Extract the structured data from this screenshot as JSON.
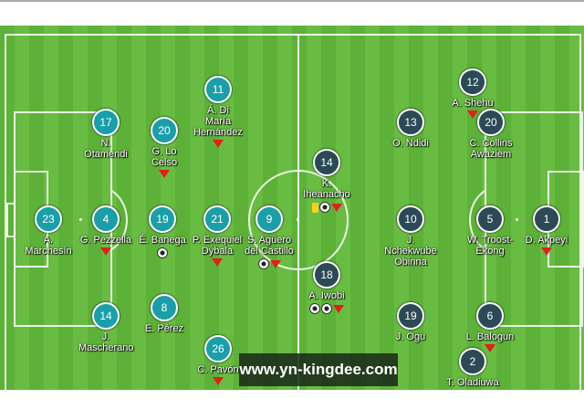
{
  "colors": {
    "home": "#1a9fa8",
    "away": "#2c4a56",
    "pitch": "#64b83e"
  },
  "home": [
    {
      "num": "11",
      "name": "Á. Di\nMaría Hernández",
      "icons": [
        "sub-off"
      ]
    },
    {
      "num": "17",
      "name": "N. Otamendi",
      "icons": []
    },
    {
      "num": "20",
      "name": "G. Lo\nCelso",
      "icons": [
        "sub-off"
      ]
    },
    {
      "num": "23",
      "name": "A. Marchesín",
      "icons": []
    },
    {
      "num": "4",
      "name": "G. Pezzella",
      "icons": [
        "sub-off"
      ]
    },
    {
      "num": "19",
      "name": "É. Banega",
      "icons": [
        "goal"
      ]
    },
    {
      "num": "21",
      "name": "P. Exequiel\nDybala",
      "icons": [
        "sub-off"
      ]
    },
    {
      "num": "9",
      "name": "S. Agüero\ndel Castillo",
      "icons": [
        "goal",
        "sub-off"
      ]
    },
    {
      "num": "14",
      "name": "J. Mascherano",
      "icons": []
    },
    {
      "num": "8",
      "name": "E. Pérez",
      "icons": []
    },
    {
      "num": "26",
      "name": "C. Pavón",
      "icons": [
        "sub-off"
      ]
    }
  ],
  "away": [
    {
      "num": "12",
      "name": "A. Shehu",
      "icons": [
        "sub-off"
      ]
    },
    {
      "num": "13",
      "name": "O. Ndidi",
      "icons": []
    },
    {
      "num": "20",
      "name": "C. Collins\nAwaziem",
      "icons": []
    },
    {
      "num": "14",
      "name": "K. Iheanacho",
      "icons": [
        "yellow-card",
        "goal",
        "sub-off"
      ]
    },
    {
      "num": "10",
      "name": "J. Nchekwube\nObinna",
      "icons": []
    },
    {
      "num": "5",
      "name": "W. Troost-Ekong",
      "icons": []
    },
    {
      "num": "1",
      "name": "D. Akpeyi",
      "icons": [
        "sub-off"
      ]
    },
    {
      "num": "18",
      "name": "A. Iwobi",
      "icons": [
        "goal",
        "goal",
        "sub-off"
      ]
    },
    {
      "num": "19",
      "name": "J. Ogu",
      "icons": []
    },
    {
      "num": "6",
      "name": "L. Balogun",
      "icons": [
        "sub-off"
      ]
    },
    {
      "num": "2",
      "name": "T. Oladiuwa",
      "icons": []
    }
  ],
  "watermark": "www.yn-kingdee.com"
}
